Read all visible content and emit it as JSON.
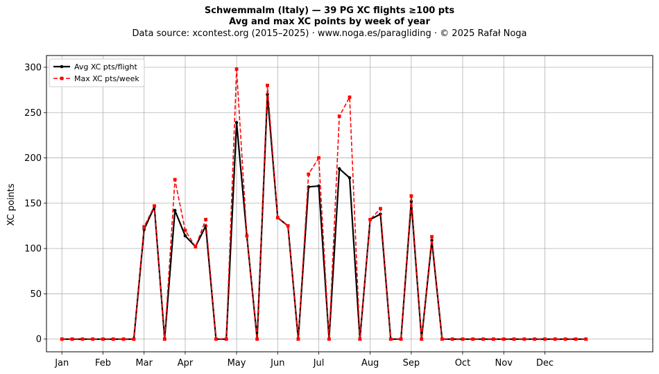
{
  "chart_data": {
    "type": "line",
    "title": "Schwemmalm (Italy)  —  39 PG XC flights ≥100 pts",
    "subtitle": "Avg and max XC points by week of year",
    "source_note": "Data source: xcontest.org (2015–2025)  ·  www.noga.es/paragliding  ·  © 2025 Rafał Noga",
    "xlabel": "",
    "ylabel": "XC points",
    "ylim": [
      -14,
      313
    ],
    "yticks": [
      0,
      50,
      100,
      150,
      200,
      250,
      300
    ],
    "xlim": [
      -1.5,
      57.5
    ],
    "month_ticks": [
      {
        "label": "Jan",
        "week": 0
      },
      {
        "label": "Feb",
        "week": 4
      },
      {
        "label": "Mar",
        "week": 8
      },
      {
        "label": "Apr",
        "week": 12
      },
      {
        "label": "May",
        "week": 17
      },
      {
        "label": "Jun",
        "week": 21
      },
      {
        "label": "Jul",
        "week": 25
      },
      {
        "label": "Aug",
        "week": 30
      },
      {
        "label": "Sep",
        "week": 34
      },
      {
        "label": "Oct",
        "week": 39
      },
      {
        "label": "Nov",
        "week": 43
      },
      {
        "label": "Dec",
        "week": 47
      }
    ],
    "grid": true,
    "legend_position": "top-left",
    "x": [
      0,
      1,
      2,
      3,
      4,
      5,
      6,
      7,
      8,
      9,
      10,
      11,
      12,
      13,
      14,
      15,
      16,
      17,
      18,
      19,
      20,
      21,
      22,
      23,
      24,
      25,
      26,
      27,
      28,
      29,
      30,
      31,
      32,
      33,
      34,
      35,
      36,
      37,
      38,
      39,
      40,
      41,
      42,
      43,
      44,
      45,
      46,
      47,
      48,
      49,
      50,
      51
    ],
    "series": [
      {
        "name": "Avg XC pts/flight",
        "color": "#000000",
        "style": "solid",
        "marker": "circle",
        "values": [
          0,
          0,
          0,
          0,
          0,
          0,
          0,
          0,
          121,
          146,
          0,
          142,
          114,
          102,
          125,
          0,
          0,
          239,
          114,
          0,
          270,
          134,
          125,
          0,
          168,
          169,
          0,
          188,
          178,
          0,
          132,
          138,
          0,
          0,
          152,
          0,
          109,
          0,
          0,
          0,
          0,
          0,
          0,
          0,
          0,
          0,
          0,
          0,
          0,
          0,
          0,
          0
        ]
      },
      {
        "name": "Max XC pts/week",
        "color": "#ff0000",
        "style": "dashed",
        "marker": "square",
        "values": [
          0,
          0,
          0,
          0,
          0,
          0,
          0,
          0,
          124,
          147,
          0,
          176,
          120,
          102,
          132,
          0,
          0,
          298,
          114,
          0,
          280,
          134,
          125,
          0,
          182,
          200,
          0,
          246,
          267,
          0,
          132,
          144,
          0,
          0,
          158,
          0,
          113,
          0,
          0,
          0,
          0,
          0,
          0,
          0,
          0,
          0,
          0,
          0,
          0,
          0,
          0,
          0
        ]
      }
    ]
  }
}
